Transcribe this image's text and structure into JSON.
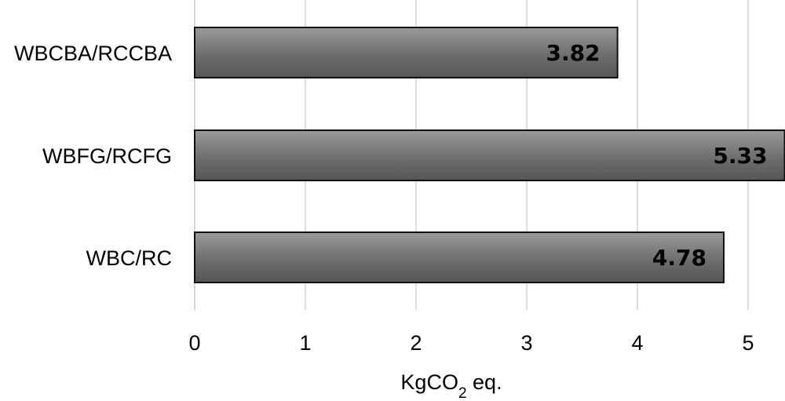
{
  "chart_data": {
    "type": "bar",
    "orientation": "horizontal",
    "categories": [
      "WBCBA/RCCBA",
      "WBFG/RCFG",
      "WBC/RC"
    ],
    "values": [
      3.82,
      5.33,
      4.78
    ],
    "value_labels": [
      "3.82",
      "5.33",
      "4.78"
    ],
    "xlabel": {
      "main": "KgCO",
      "sub": "2",
      "suffix": " eq."
    },
    "xticks": [
      "0",
      "1",
      "2",
      "3",
      "4",
      "5"
    ],
    "xlim": [
      0,
      5.3
    ],
    "grid": "vertical",
    "colors": {
      "bar_top": "#9a9a9a",
      "bar_mid": "#6e6e6e",
      "bar_bottom": "#555555",
      "bar_edge": "#111111",
      "grid": "#c8c8c8"
    }
  }
}
